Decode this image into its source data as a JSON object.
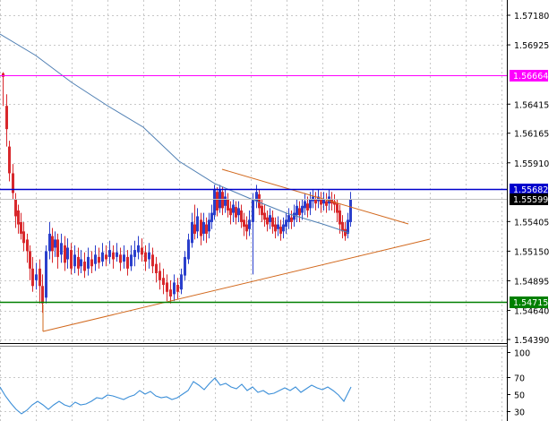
{
  "main_chart": {
    "price_labels": [
      {
        "text": "1.57180",
        "value": 1.5718
      },
      {
        "text": "1.56925",
        "value": 1.56925
      },
      {
        "text": "1.56415",
        "value": 1.56415
      },
      {
        "text": "1.56165",
        "value": 1.56165
      },
      {
        "text": "1.55910",
        "value": 1.5591
      },
      {
        "text": "1.55405",
        "value": 1.55405
      },
      {
        "text": "1.55150",
        "value": 1.5515
      },
      {
        "text": "1.54895",
        "value": 1.54895
      },
      {
        "text": "1.54640",
        "value": 1.5464
      },
      {
        "text": "1.54390",
        "value": 1.5439
      }
    ],
    "levels": [
      {
        "name": "magenta-level",
        "text": "1.56664",
        "value": 1.56664,
        "color": "#ff00ff"
      },
      {
        "name": "blue-level",
        "text": "1.55682",
        "value": 1.55682,
        "color": "#0000cc"
      },
      {
        "name": "current-price",
        "text": "1.55599",
        "value": 1.55599,
        "color": "#000000"
      },
      {
        "name": "green-level",
        "text": "1.54715",
        "value": 1.54715,
        "color": "#008000"
      }
    ],
    "colors": {
      "bull": "#2a3fcc",
      "bear": "#d8282c",
      "moving_average": "#4f7fb3",
      "trendlines": "#d2691e",
      "grid": "#c8c8c8"
    }
  },
  "sub_window": {
    "labels": [
      {
        "text": "100",
        "value": 100
      },
      {
        "text": "70",
        "value": 70
      },
      {
        "text": "50",
        "value": 50
      },
      {
        "text": "30",
        "value": 30
      }
    ],
    "line_color": "#3c8fd8"
  }
}
